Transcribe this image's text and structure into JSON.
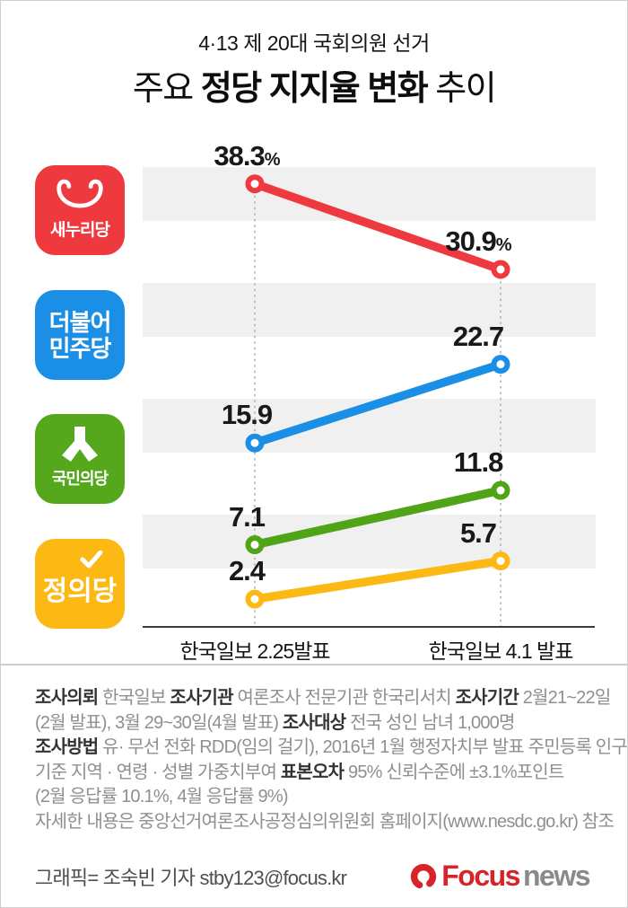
{
  "header": {
    "subtitle": "4·13 제 20대 국회의원 선거",
    "title": {
      "prefix": "주요 ",
      "strong": "정당 지지율 변화",
      "suffix": " 추이"
    }
  },
  "parties": [
    {
      "label": "새누리당",
      "color": "#ee3a3f"
    },
    {
      "label_line1": "더불어",
      "label_line2": "민주당",
      "color": "#1b8fe5"
    },
    {
      "label": "국민의당",
      "color": "#55a71c"
    },
    {
      "label": "정의당",
      "color": "#fcb813"
    }
  ],
  "chart_data": {
    "type": "line",
    "title": "주요 정당 지지율 변화 추이",
    "categories": [
      "한국일보 2.25발표",
      "한국일보 4.1 발표"
    ],
    "series": [
      {
        "name": "새누리당",
        "color": "#ee3a3f",
        "values": [
          38.3,
          30.9
        ],
        "labels": [
          "38.3%",
          "30.9%"
        ]
      },
      {
        "name": "더불어민주당",
        "color": "#1b8fe5",
        "values": [
          15.9,
          22.7
        ],
        "labels": [
          "15.9",
          "22.7"
        ]
      },
      {
        "name": "국민의당",
        "color": "#4fa417",
        "values": [
          7.1,
          11.8
        ],
        "labels": [
          "7.1",
          "11.8"
        ]
      },
      {
        "name": "정의당",
        "color": "#fcb813",
        "values": [
          2.4,
          5.7
        ],
        "labels": [
          "2.4",
          "5.7"
        ]
      }
    ],
    "unit": "%",
    "ylim": [
      0,
      40
    ],
    "grid": "striped",
    "legend_position": "left-logos"
  },
  "footer": {
    "lines": [
      [
        {
          "b": 1,
          "t": "조사의뢰"
        },
        {
          "t": " 한국일보 "
        },
        {
          "b": 1,
          "t": "조사기관"
        },
        {
          "t": " 여론조사 전문기관 한국리서치 "
        },
        {
          "b": 1,
          "t": "조사기간"
        },
        {
          "t": " 2월21~22일"
        }
      ],
      [
        {
          "t": "(2월 발표), 3월 29~30일(4월 발표) "
        },
        {
          "b": 1,
          "t": "조사대상"
        },
        {
          "t": " 전국 성인 남녀 1,000명"
        }
      ],
      [
        {
          "b": 1,
          "t": "조사방법"
        },
        {
          "t": " 유· 무선 전화 RDD(임의 걸기), 2016년 1월 행정자치부 발표 주민등록 인구"
        }
      ],
      [
        {
          "t": "기준 지역 · 연령 · 성별 가중치부여 "
        },
        {
          "b": 1,
          "t": "표본오차"
        },
        {
          "t": " 95% 신뢰수준에 ±3.1%포인트"
        }
      ],
      [
        {
          "t": "(2월 응답률 10.1%, 4월 응답률 9%)"
        }
      ],
      [
        {
          "t": "자세한 내용은 중앙선거여론조사공정심의위원회 홈페이지(www.nesdc.go.kr) 참조"
        }
      ]
    ]
  },
  "credit": {
    "text": "그래픽= 조숙빈 기자 stby123@focus.kr"
  },
  "brand": {
    "focus": "Focus",
    "news": "news",
    "focus_color": "#d7232a",
    "news_color": "#8a8a8a"
  }
}
